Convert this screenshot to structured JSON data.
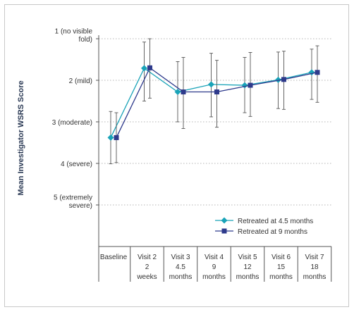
{
  "chart_data": {
    "type": "line",
    "ylabel": "Mean Investigator WSRS Score",
    "y_ticks": [
      {
        "value": 1,
        "lines": [
          "1 (no visible",
          "fold)"
        ]
      },
      {
        "value": 2,
        "lines": [
          "2 (mild)"
        ]
      },
      {
        "value": 3,
        "lines": [
          "3 (moderate)"
        ]
      },
      {
        "value": 4,
        "lines": [
          "4 (severe)"
        ]
      },
      {
        "value": 5,
        "lines": [
          "5 (extremely",
          "severe)"
        ]
      }
    ],
    "ylim": [
      1,
      6
    ],
    "y_inverted": true,
    "grid": "horizontal dotted",
    "legend_position": "bottom-right",
    "categories": [
      {
        "lines": [
          "Baseline"
        ]
      },
      {
        "lines": [
          "Visit 2",
          "2",
          "weeks"
        ]
      },
      {
        "lines": [
          "Visit 3",
          "4.5",
          "months"
        ]
      },
      {
        "lines": [
          "Visit 4",
          "9",
          "months"
        ]
      },
      {
        "lines": [
          "Visit 5",
          "12",
          "months"
        ]
      },
      {
        "lines": [
          "Visit 6",
          "15",
          "months"
        ]
      },
      {
        "lines": [
          "Visit 7",
          "18",
          "months"
        ]
      }
    ],
    "series": [
      {
        "name": "Retreated at 4.5 months",
        "marker": "diamond",
        "color": "#1aa3b8",
        "values": [
          3.38,
          1.71,
          2.28,
          2.1,
          2.12,
          1.99,
          1.81
        ],
        "err_low": [
          2.75,
          1.08,
          1.55,
          1.35,
          1.45,
          1.32,
          1.25
        ],
        "err_high": [
          4.01,
          2.5,
          3.0,
          2.88,
          2.78,
          2.68,
          2.46
        ]
      },
      {
        "name": "Retreated at 9 months",
        "marker": "square",
        "color": "#2e3a8c",
        "values": [
          3.38,
          1.7,
          2.28,
          2.28,
          2.12,
          1.98,
          1.81
        ],
        "err_low": [
          2.78,
          1.0,
          1.45,
          1.52,
          1.33,
          1.3,
          1.17
        ],
        "err_high": [
          3.98,
          2.43,
          3.16,
          3.13,
          2.87,
          2.7,
          2.53
        ]
      }
    ]
  }
}
